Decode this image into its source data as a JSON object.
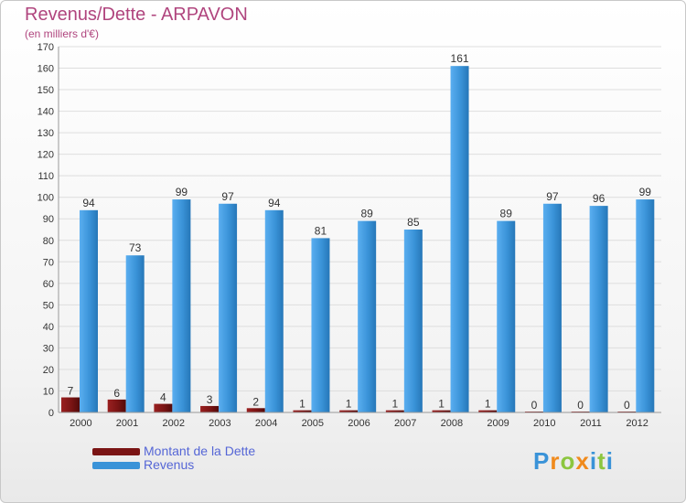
{
  "title": "Revenus/Dette - ARPAVON",
  "subtitle": "(en milliers d'€)",
  "colors": {
    "title": "#b0457e",
    "debt": "#7a1414",
    "revenue": "#3a93d8",
    "legend_text": "#5566d6"
  },
  "legend": [
    {
      "label": "Montant de la Dette",
      "color": "#7a1414"
    },
    {
      "label": "Revenus",
      "color": "#3a93d8"
    }
  ],
  "logo": {
    "text": "Proxiti"
  },
  "chart_data": {
    "type": "bar",
    "categories": [
      "2000",
      "2001",
      "2002",
      "2003",
      "2004",
      "2005",
      "2006",
      "2007",
      "2008",
      "2009",
      "2010",
      "2011",
      "2012"
    ],
    "series": [
      {
        "name": "Montant de la Dette",
        "values": [
          7,
          6,
          4,
          3,
          2,
          1,
          1,
          1,
          1,
          1,
          0,
          0,
          0
        ]
      },
      {
        "name": "Revenus",
        "values": [
          94,
          73,
          99,
          97,
          94,
          81,
          89,
          85,
          161,
          89,
          97,
          96,
          99
        ]
      }
    ],
    "ylim": [
      0,
      170
    ],
    "yticks": [
      0,
      10,
      20,
      30,
      40,
      50,
      60,
      70,
      80,
      90,
      100,
      110,
      120,
      130,
      140,
      150,
      160,
      170
    ],
    "grid": true,
    "legend_position": "bottom-left"
  }
}
